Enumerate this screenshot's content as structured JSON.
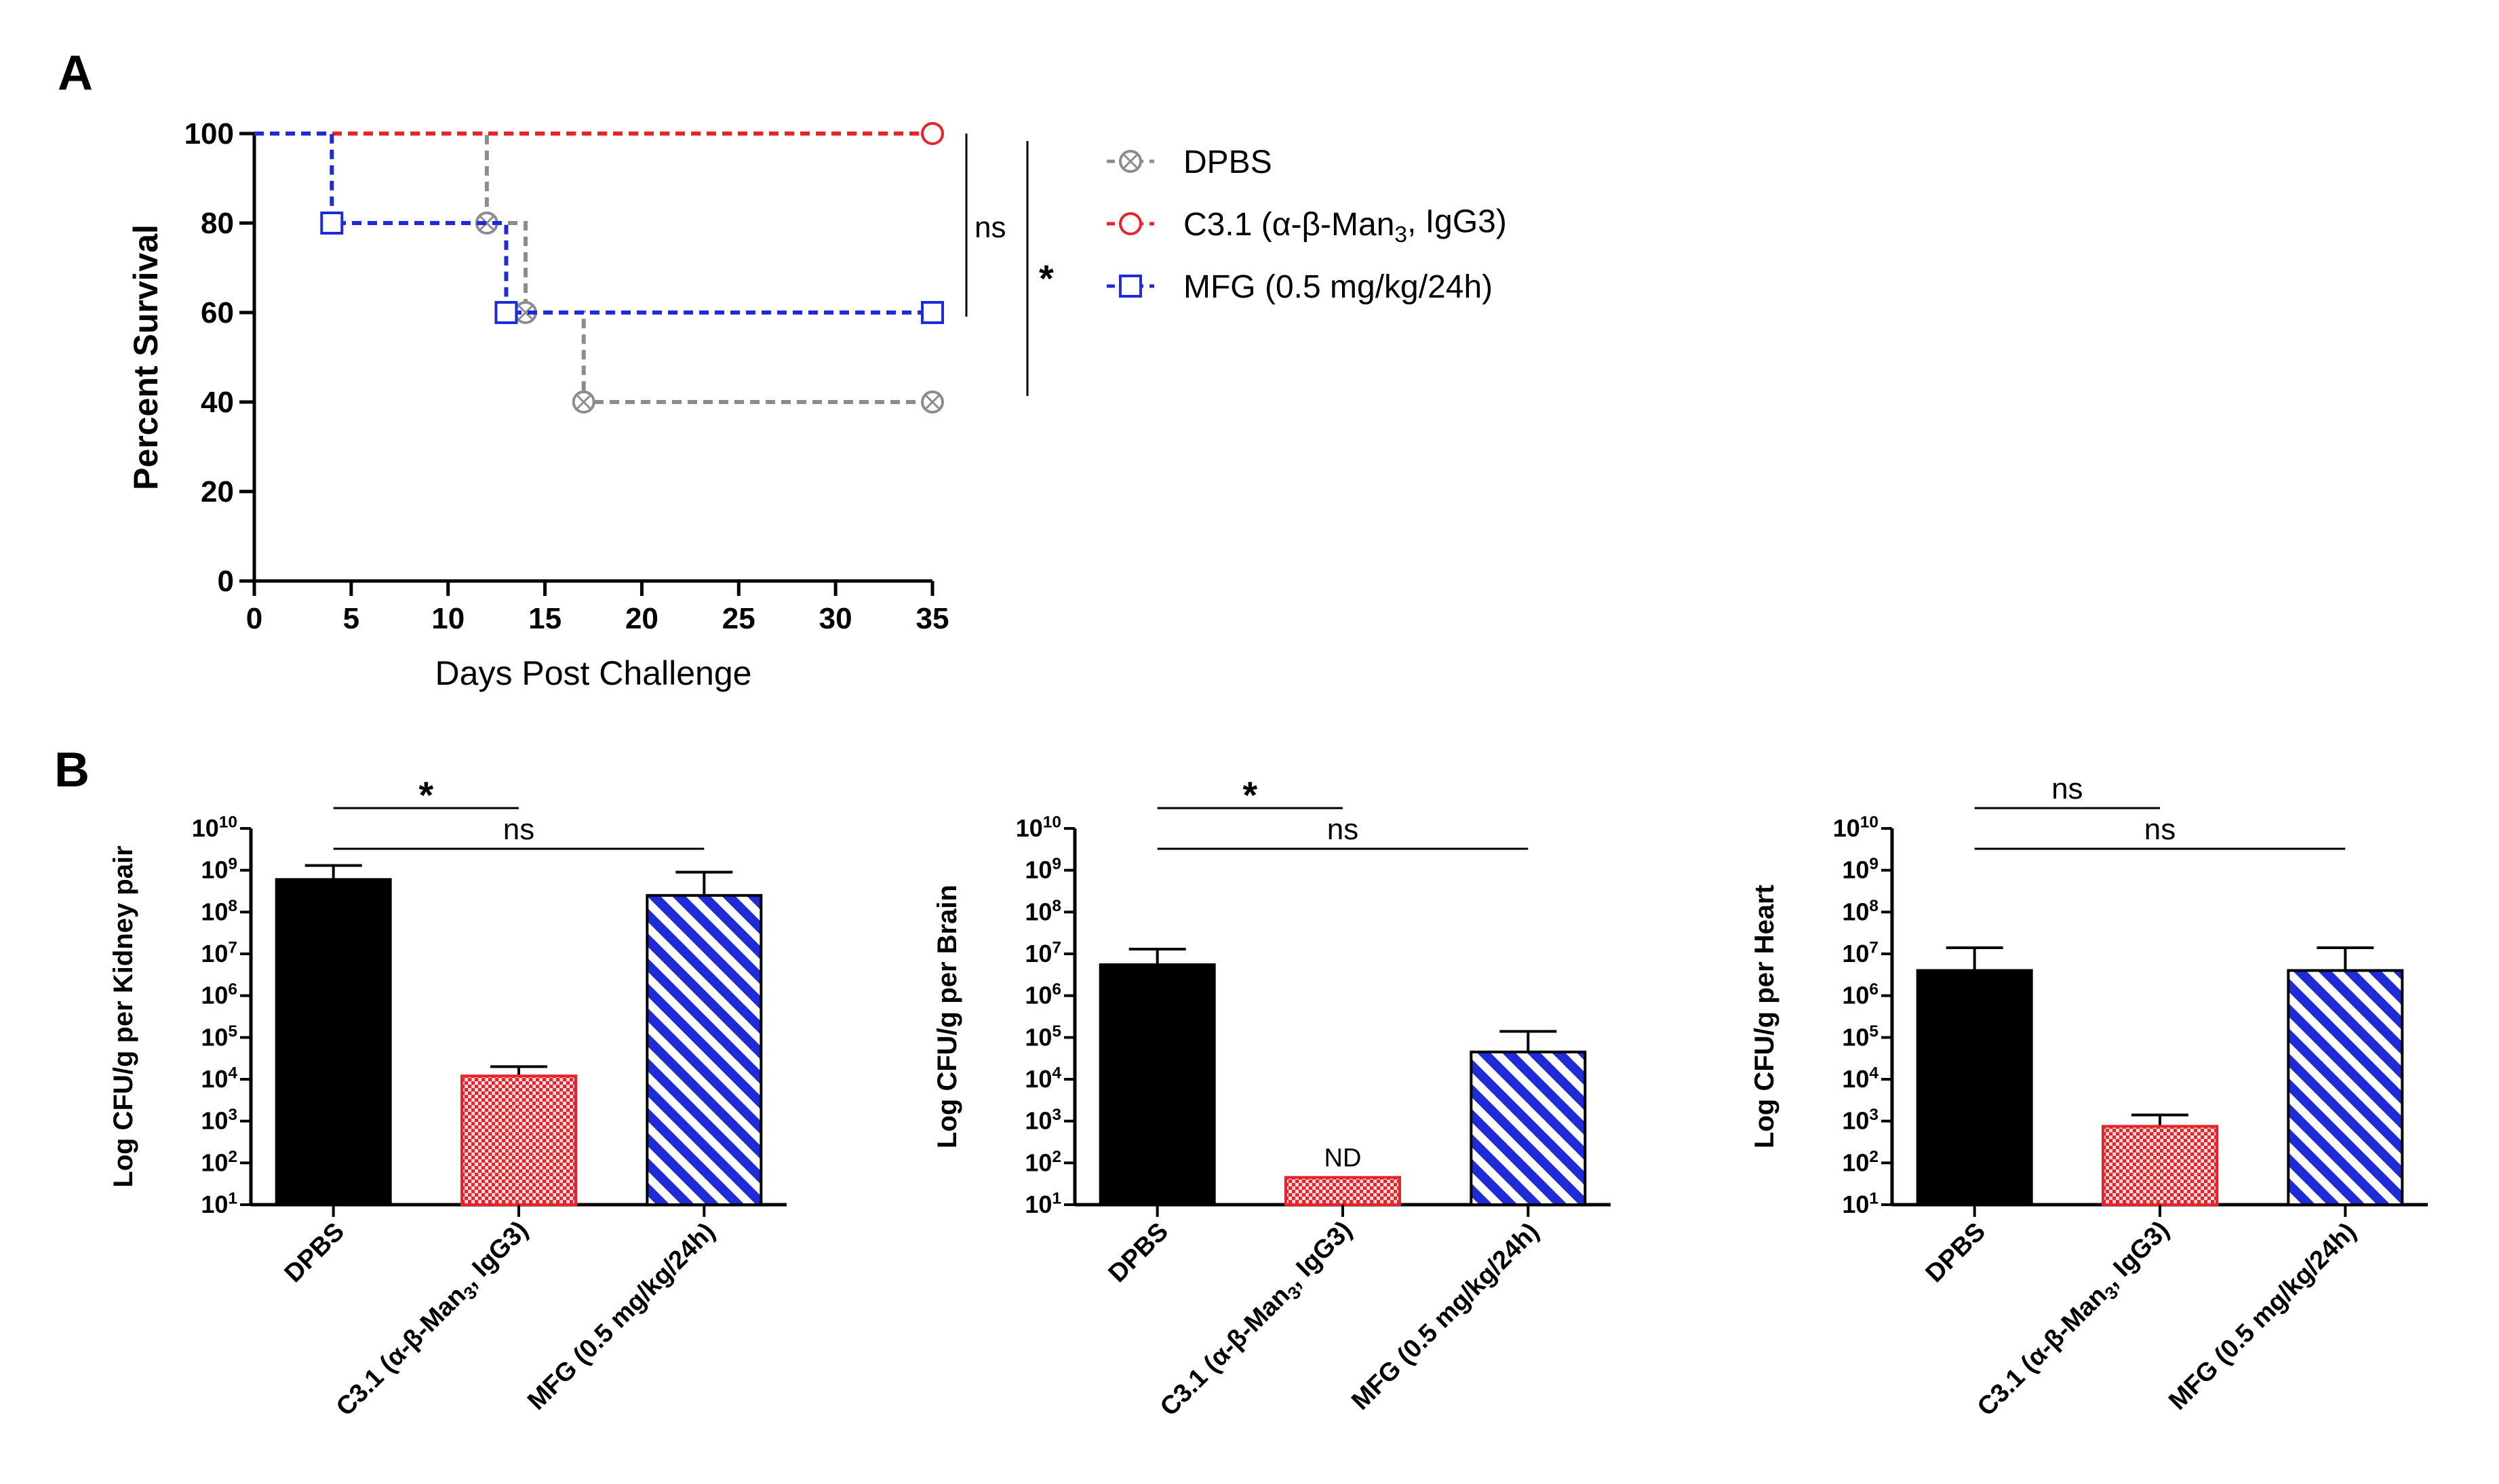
{
  "panel_a_letter": "A",
  "panel_b_letter": "B",
  "colors": {
    "dpbs": "#8c8c8c",
    "c31": "#e8232a",
    "mfg": "#1f2bd6",
    "dpbs_bar": "#000000",
    "c31_bar_fill": "#f7a8a8",
    "c31_bar_stroke": "#e8232a",
    "mfg_bar": "#1f2bd6"
  },
  "legend": [
    {
      "key": "dpbs",
      "label": "DPBS",
      "marker": "circle-x"
    },
    {
      "key": "c31",
      "label": "C3.1 (α-β-Man",
      "sub": "3",
      "tail": ", IgG3)",
      "marker": "circle"
    },
    {
      "key": "mfg",
      "label": "MFG (0.5 mg/kg/24h)",
      "marker": "square"
    }
  ],
  "panel_a_sig": [
    {
      "label": "ns",
      "between": [
        "c31",
        "mfg"
      ]
    },
    {
      "label": "*",
      "between": [
        "c31",
        "dpbs"
      ]
    }
  ],
  "panel_b_categories": [
    {
      "label": "DPBS",
      "key": "dpbs"
    },
    {
      "label": "C3.1 (α-β-Man",
      "sub": "3",
      "tail": ", IgG3)",
      "key": "c31"
    },
    {
      "label": "MFG (0.5 mg/kg/24h)",
      "key": "mfg"
    }
  ],
  "chart_data": [
    {
      "type": "line",
      "step": true,
      "xlabel": "Days Post Challenge",
      "ylabel": "Percent Survival",
      "xlim": [
        0,
        35
      ],
      "ylim": [
        0,
        100
      ],
      "xticks": [
        0,
        5,
        10,
        15,
        20,
        25,
        30,
        35
      ],
      "yticks": [
        0,
        20,
        40,
        60,
        80,
        100
      ],
      "legend_position": "right",
      "series": [
        {
          "key": "dpbs",
          "x": [
            0,
            12,
            14,
            17,
            35
          ],
          "y": [
            100,
            80,
            60,
            40,
            40
          ],
          "markers_at": [
            12,
            14,
            17,
            35
          ]
        },
        {
          "key": "c31",
          "x": [
            0,
            35
          ],
          "y": [
            100,
            100
          ],
          "markers_at": [
            35
          ]
        },
        {
          "key": "mfg",
          "x": [
            0,
            4,
            13,
            35
          ],
          "y": [
            100,
            80,
            60,
            60
          ],
          "markers_at": [
            4,
            13,
            35
          ]
        }
      ]
    },
    {
      "type": "bar",
      "yscale": "log",
      "ylabel": "Log CFU/g per Kidney pair",
      "ylim_exponents": [
        1,
        10
      ],
      "values": [
        600000000,
        12000,
        250000000
      ],
      "error_upper": [
        1300000000,
        20000,
        900000000
      ],
      "comparisons": [
        {
          "label": "*",
          "from": 0,
          "to": 1
        },
        {
          "label": "ns",
          "from": 0,
          "to": 2
        }
      ],
      "annotations": []
    },
    {
      "type": "bar",
      "yscale": "log",
      "ylabel": "Log CFU/g per Brain",
      "ylim_exponents": [
        1,
        10
      ],
      "values": [
        5500000,
        45,
        45000
      ],
      "error_upper": [
        13000000,
        null,
        140000
      ],
      "comparisons": [
        {
          "label": "*",
          "from": 0,
          "to": 1
        },
        {
          "label": "ns",
          "from": 0,
          "to": 2
        }
      ],
      "annotations": [
        {
          "bar": 1,
          "label": "ND"
        }
      ]
    },
    {
      "type": "bar",
      "yscale": "log",
      "ylabel": "Log CFU/g per Heart",
      "ylim_exponents": [
        1,
        10
      ],
      "values": [
        4000000,
        750,
        4000000
      ],
      "error_upper": [
        14000000,
        1400,
        14000000
      ],
      "comparisons": [
        {
          "label": "ns",
          "from": 0,
          "to": 1
        },
        {
          "label": "ns",
          "from": 0,
          "to": 2
        }
      ],
      "annotations": []
    }
  ]
}
